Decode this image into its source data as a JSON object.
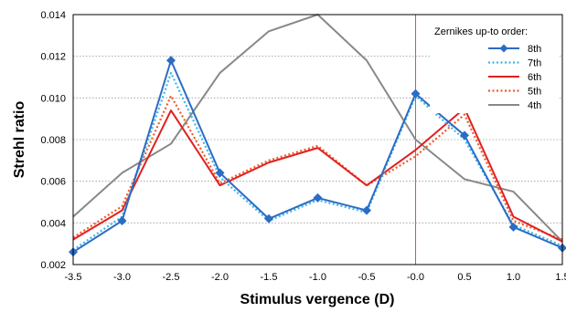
{
  "chart_data": {
    "type": "line",
    "xlabel": "Stimulus vergence (D)",
    "ylabel": "Strehl ratio",
    "xlim": [
      -3.5,
      1.5
    ],
    "ylim": [
      0.002,
      0.014
    ],
    "x_ticks": [
      -3.5,
      -3.0,
      -2.5,
      -2.0,
      -1.5,
      -1.0,
      -0.5,
      0.0,
      0.5,
      1.0,
      1.5
    ],
    "x_tick_labels": [
      "-3.5",
      "-3.0",
      "-2.5",
      "-2.0",
      "-1.5",
      "-1.0",
      "-0.5",
      "-0.0",
      "0.5",
      "1.0",
      "1.5"
    ],
    "y_ticks": [
      0.002,
      0.004,
      0.006,
      0.008,
      0.01,
      0.012,
      0.014
    ],
    "y_tick_labels": [
      "0.002",
      "0.004",
      "0.006",
      "0.008",
      "0.010",
      "0.012",
      "0.014"
    ],
    "grid": "horizontal dotted",
    "vertical_reference_line": {
      "x": 0.0,
      "color": "#e05050"
    },
    "legend": {
      "title": "Zernikes up-to order:",
      "position": "top-right"
    },
    "x": [
      -3.5,
      -3.0,
      -2.5,
      -2.0,
      -1.5,
      -1.0,
      -0.5,
      0.0,
      0.5,
      1.0,
      1.5
    ],
    "series": [
      {
        "name": "8th",
        "color": "#2b6cc4",
        "style": "solid",
        "markers": "diamond",
        "values": [
          0.0026,
          0.0041,
          0.0118,
          0.0064,
          0.0042,
          0.0052,
          0.0046,
          0.0102,
          0.0082,
          0.0038,
          0.0028
        ]
      },
      {
        "name": "7th",
        "color": "#3fb6e8",
        "style": "dotted",
        "markers": "none",
        "values": [
          0.0027,
          0.0043,
          0.0112,
          0.0062,
          0.0041,
          0.0051,
          0.0045,
          0.0101,
          0.008,
          0.0039,
          0.0029
        ]
      },
      {
        "name": "6th",
        "color": "#e02020",
        "style": "solid",
        "markers": "none",
        "values": [
          0.0032,
          0.0046,
          0.0094,
          0.0058,
          0.0069,
          0.0076,
          0.0058,
          0.0075,
          0.0095,
          0.0043,
          0.0031
        ]
      },
      {
        "name": "5th",
        "color": "#f05a28",
        "style": "dotted",
        "markers": "none",
        "values": [
          0.0033,
          0.0048,
          0.0101,
          0.0059,
          0.007,
          0.0077,
          0.0058,
          0.0072,
          0.0092,
          0.0041,
          0.0032
        ]
      },
      {
        "name": "4th",
        "color": "#888888",
        "style": "solid",
        "markers": "none",
        "values": [
          0.0043,
          0.0064,
          0.0078,
          0.0112,
          0.0132,
          0.014,
          0.0118,
          0.008,
          0.0061,
          0.0055,
          0.0031
        ]
      }
    ]
  }
}
